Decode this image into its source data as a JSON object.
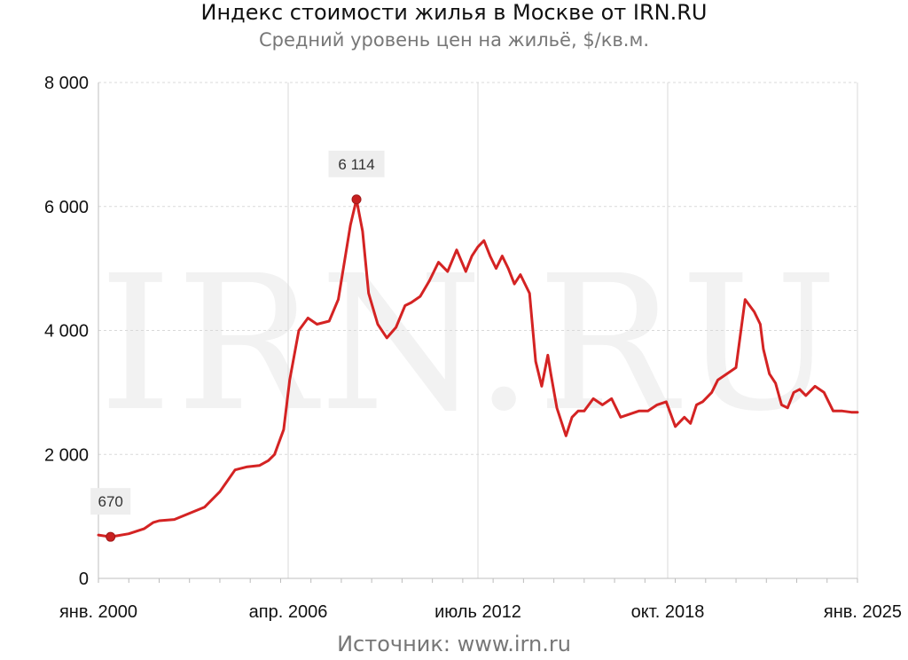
{
  "title": "Индекс стоимости жилья в Москве от IRN.RU",
  "subtitle": "Средний уровень цен на жильё, $/кв.м.",
  "source": "Источник: www.irn.ru",
  "watermark": "IRN.RU",
  "colors": {
    "line": "#d42323",
    "marker": "#c82020",
    "grid": "#d9d9d9",
    "label_bg": "#eeeeee",
    "watermark": "#f2f2f2"
  },
  "chart_data": {
    "type": "line",
    "title": "Индекс стоимости жилья в Москве от IRN.RU",
    "subtitle": "Средний уровень цен на жильё, $/кв.м.",
    "xlim": [
      2000.0,
      2025.0
    ],
    "ylim": [
      0,
      8000
    ],
    "y_ticks": [
      0,
      2000,
      4000,
      6000,
      8000
    ],
    "y_tick_labels": [
      "0",
      "2 000",
      "4 000",
      "6 000",
      "8 000"
    ],
    "x_ticks": [
      2000.0,
      2006.25,
      2012.5,
      2018.75,
      2025.0
    ],
    "x_tick_labels": [
      "янв. 2000",
      "апр. 2006",
      "июль 2012",
      "окт. 2018",
      "янв. 2025"
    ],
    "grid": true,
    "annotations": [
      {
        "x": 2000.4,
        "y": 670,
        "label": "670"
      },
      {
        "x": 2008.5,
        "y": 6114,
        "label": "6 114"
      }
    ],
    "series": [
      {
        "x": [
          2000.0,
          2000.4,
          2001.0,
          2001.5,
          2001.8,
          2002.0,
          2002.5,
          2003.0,
          2003.5,
          2004.0,
          2004.5,
          2004.9,
          2005.3,
          2005.6,
          2005.8,
          2006.1,
          2006.3,
          2006.6,
          2006.9,
          2007.2,
          2007.6,
          2007.9,
          2008.3,
          2008.5,
          2008.7,
          2008.9,
          2009.2,
          2009.5,
          2009.8,
          2010.1,
          2010.3,
          2010.6,
          2010.9,
          2011.2,
          2011.5,
          2011.8,
          2012.1,
          2012.3,
          2012.5,
          2012.7,
          2012.9,
          2013.1,
          2013.3,
          2013.5,
          2013.7,
          2013.9,
          2014.2,
          2014.4,
          2014.6,
          2014.8,
          2014.9,
          2015.1,
          2015.4,
          2015.6,
          2015.8,
          2016.0,
          2016.3,
          2016.6,
          2016.9,
          2017.2,
          2017.5,
          2017.8,
          2018.1,
          2018.4,
          2018.7,
          2019.0,
          2019.3,
          2019.5,
          2019.7,
          2019.9,
          2020.2,
          2020.4,
          2020.7,
          2021.0,
          2021.3,
          2021.6,
          2021.8,
          2021.9,
          2022.1,
          2022.3,
          2022.5,
          2022.7,
          2022.9,
          2023.1,
          2023.3,
          2023.6,
          2023.9,
          2024.2,
          2024.5,
          2024.8,
          2025.0
        ],
        "values": [
          700,
          670,
          720,
          800,
          900,
          930,
          950,
          1050,
          1150,
          1400,
          1750,
          1800,
          1820,
          1900,
          2000,
          2400,
          3200,
          4000,
          4200,
          4100,
          4150,
          4500,
          5700,
          6114,
          5600,
          4600,
          4100,
          3880,
          4050,
          4400,
          4450,
          4550,
          4800,
          5100,
          4950,
          5300,
          4950,
          5200,
          5350,
          5450,
          5200,
          5000,
          5200,
          5000,
          4750,
          4900,
          4600,
          3500,
          3100,
          3600,
          3300,
          2750,
          2300,
          2600,
          2700,
          2700,
          2900,
          2800,
          2900,
          2600,
          2650,
          2700,
          2700,
          2800,
          2850,
          2450,
          2600,
          2500,
          2800,
          2850,
          3000,
          3200,
          3300,
          3400,
          4500,
          4300,
          4100,
          3700,
          3300,
          3150,
          2800,
          2750,
          3000,
          3050,
          2950,
          3100,
          3000,
          2700,
          2700,
          2680,
          2680
        ]
      }
    ]
  }
}
